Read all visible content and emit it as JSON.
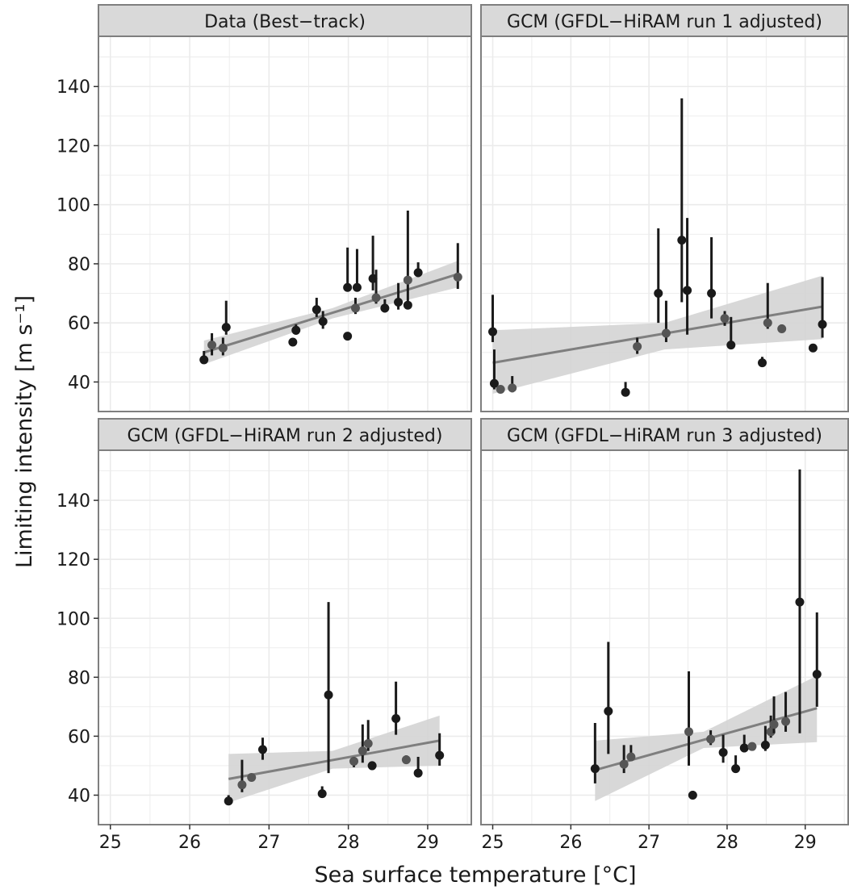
{
  "chart_data": {
    "type": "scatter",
    "xlabel": "Sea surface temperature [°C]",
    "ylabel": "Limiting intensity [m s⁻¹]",
    "x_ticks": [
      25,
      26,
      27,
      28,
      29
    ],
    "y_ticks": [
      40,
      60,
      80,
      100,
      120,
      140
    ],
    "xlim": [
      24.85,
      29.55
    ],
    "ylim": [
      30,
      157
    ],
    "colors": {
      "point_dark": "#1a1a1a",
      "point_gray": "#555555",
      "fit_line": "#7f7f7f",
      "ci_band": "#d4d4d4",
      "strip_fill": "#d9d9d9",
      "grid": "#ebebeb",
      "frame": "#7f7f7f"
    },
    "panels": [
      {
        "title": "Data (Best−track)",
        "points": [
          {
            "x": 26.18,
            "y": 47.5,
            "lo": 46.5,
            "hi": 50.5,
            "tone": "dark"
          },
          {
            "x": 26.28,
            "y": 52.5,
            "lo": 49.0,
            "hi": 56.5,
            "tone": "gray"
          },
          {
            "x": 26.42,
            "y": 51.5,
            "lo": 49.0,
            "hi": 55.0,
            "tone": "gray"
          },
          {
            "x": 26.46,
            "y": 58.5,
            "lo": 56.0,
            "hi": 67.5,
            "tone": "dark"
          },
          {
            "x": 27.3,
            "y": 53.5,
            "lo": 53.5,
            "hi": 53.5,
            "tone": "dark"
          },
          {
            "x": 27.34,
            "y": 57.5,
            "lo": 56.0,
            "hi": 59.5,
            "tone": "dark"
          },
          {
            "x": 27.6,
            "y": 64.5,
            "lo": 62.0,
            "hi": 68.5,
            "tone": "dark"
          },
          {
            "x": 27.68,
            "y": 60.5,
            "lo": 58.0,
            "hi": 64.0,
            "tone": "dark"
          },
          {
            "x": 27.99,
            "y": 72.0,
            "lo": 72.0,
            "hi": 85.5,
            "tone": "dark"
          },
          {
            "x": 27.99,
            "y": 55.5,
            "lo": 55.5,
            "hi": 55.5,
            "tone": "dark"
          },
          {
            "x": 28.09,
            "y": 65.0,
            "lo": 63.0,
            "hi": 68.5,
            "tone": "gray"
          },
          {
            "x": 28.11,
            "y": 72.0,
            "lo": 72.0,
            "hi": 85.0,
            "tone": "dark"
          },
          {
            "x": 28.31,
            "y": 75.0,
            "lo": 71.0,
            "hi": 89.5,
            "tone": "dark"
          },
          {
            "x": 28.35,
            "y": 68.5,
            "lo": 66.5,
            "hi": 78.0,
            "tone": "gray"
          },
          {
            "x": 28.46,
            "y": 65.0,
            "lo": 63.5,
            "hi": 68.0,
            "tone": "dark"
          },
          {
            "x": 28.63,
            "y": 67.0,
            "lo": 64.5,
            "hi": 73.5,
            "tone": "dark"
          },
          {
            "x": 28.75,
            "y": 74.5,
            "lo": 66.0,
            "hi": 98.0,
            "tone": "gray"
          },
          {
            "x": 28.75,
            "y": 66.0,
            "lo": 66.0,
            "hi": 66.0,
            "tone": "dark"
          },
          {
            "x": 28.88,
            "y": 77.0,
            "lo": 75.5,
            "hi": 80.5,
            "tone": "dark"
          },
          {
            "x": 29.38,
            "y": 75.5,
            "lo": 71.5,
            "hi": 87.0,
            "tone": "gray"
          }
        ],
        "fit": {
          "x0": 26.18,
          "x1": 29.38,
          "y0": 50.0,
          "y1": 76.5
        },
        "band": [
          {
            "x": 26.18,
            "lo": 46.0,
            "hi": 54.0
          },
          {
            "x": 27.8,
            "lo": 61.5,
            "hi": 65.0
          },
          {
            "x": 29.38,
            "lo": 72.0,
            "hi": 81.0
          }
        ]
      },
      {
        "title": "GCM (GFDL−HiRAM run 1 adjusted)",
        "points": [
          {
            "x": 25.0,
            "y": 57.0,
            "lo": 53.5,
            "hi": 69.5,
            "tone": "dark"
          },
          {
            "x": 25.02,
            "y": 39.5,
            "lo": 37.5,
            "hi": 51.0,
            "tone": "dark"
          },
          {
            "x": 25.1,
            "y": 37.5,
            "lo": 37.0,
            "hi": 38.5,
            "tone": "gray"
          },
          {
            "x": 25.25,
            "y": 38.0,
            "lo": 36.5,
            "hi": 42.0,
            "tone": "gray"
          },
          {
            "x": 26.7,
            "y": 36.5,
            "lo": 36.0,
            "hi": 40.0,
            "tone": "dark"
          },
          {
            "x": 26.85,
            "y": 52.0,
            "lo": 49.5,
            "hi": 55.0,
            "tone": "gray"
          },
          {
            "x": 27.12,
            "y": 70.0,
            "lo": 60.0,
            "hi": 92.0,
            "tone": "dark"
          },
          {
            "x": 27.22,
            "y": 56.5,
            "lo": 53.5,
            "hi": 67.5,
            "tone": "gray"
          },
          {
            "x": 27.42,
            "y": 88.0,
            "lo": 67.0,
            "hi": 136.0,
            "tone": "dark"
          },
          {
            "x": 27.49,
            "y": 71.0,
            "lo": 56.0,
            "hi": 95.5,
            "tone": "dark"
          },
          {
            "x": 27.8,
            "y": 70.0,
            "lo": 61.5,
            "hi": 89.0,
            "tone": "dark"
          },
          {
            "x": 27.97,
            "y": 61.5,
            "lo": 59.0,
            "hi": 64.0,
            "tone": "gray"
          },
          {
            "x": 28.05,
            "y": 52.5,
            "lo": 51.5,
            "hi": 62.0,
            "tone": "dark"
          },
          {
            "x": 28.45,
            "y": 46.5,
            "lo": 45.5,
            "hi": 48.5,
            "tone": "dark"
          },
          {
            "x": 28.52,
            "y": 60.0,
            "lo": 58.0,
            "hi": 73.5,
            "tone": "gray"
          },
          {
            "x": 28.7,
            "y": 58.0,
            "lo": 57.0,
            "hi": 59.5,
            "tone": "gray"
          },
          {
            "x": 29.1,
            "y": 51.5,
            "lo": 51.5,
            "hi": 51.5,
            "tone": "dark"
          },
          {
            "x": 29.22,
            "y": 59.5,
            "lo": 55.0,
            "hi": 75.5,
            "tone": "dark"
          }
        ],
        "fit": {
          "x0": 25.0,
          "x1": 29.22,
          "y0": 46.5,
          "y1": 65.5
        },
        "band": [
          {
            "x": 25.0,
            "lo": 36.0,
            "hi": 57.5
          },
          {
            "x": 27.2,
            "lo": 51.0,
            "hi": 60.0
          },
          {
            "x": 29.22,
            "lo": 54.5,
            "hi": 76.0
          }
        ]
      },
      {
        "title": "GCM (GFDL−HiRAM run 2 adjusted)",
        "points": [
          {
            "x": 26.49,
            "y": 38.0,
            "lo": 37.0,
            "hi": 40.0,
            "tone": "dark"
          },
          {
            "x": 26.66,
            "y": 43.5,
            "lo": 41.0,
            "hi": 52.0,
            "tone": "gray"
          },
          {
            "x": 26.78,
            "y": 46.0,
            "lo": 45.0,
            "hi": 47.0,
            "tone": "gray"
          },
          {
            "x": 26.92,
            "y": 55.5,
            "lo": 52.0,
            "hi": 59.5,
            "tone": "dark"
          },
          {
            "x": 27.67,
            "y": 40.5,
            "lo": 40.0,
            "hi": 43.0,
            "tone": "dark"
          },
          {
            "x": 27.75,
            "y": 74.0,
            "lo": 47.5,
            "hi": 105.5,
            "tone": "dark"
          },
          {
            "x": 28.07,
            "y": 51.5,
            "lo": 49.5,
            "hi": 53.0,
            "tone": "gray"
          },
          {
            "x": 28.18,
            "y": 55.0,
            "lo": 51.0,
            "hi": 64.0,
            "tone": "gray"
          },
          {
            "x": 28.25,
            "y": 57.5,
            "lo": 55.0,
            "hi": 65.5,
            "tone": "gray"
          },
          {
            "x": 28.3,
            "y": 50.0,
            "lo": 48.5,
            "hi": 51.5,
            "tone": "dark"
          },
          {
            "x": 28.6,
            "y": 66.0,
            "lo": 60.5,
            "hi": 78.5,
            "tone": "dark"
          },
          {
            "x": 28.73,
            "y": 52.0,
            "lo": 51.0,
            "hi": 53.5,
            "tone": "gray"
          },
          {
            "x": 28.88,
            "y": 47.5,
            "lo": 46.0,
            "hi": 53.0,
            "tone": "dark"
          },
          {
            "x": 29.15,
            "y": 53.5,
            "lo": 50.0,
            "hi": 61.0,
            "tone": "dark"
          }
        ],
        "fit": {
          "x0": 26.49,
          "x1": 29.15,
          "y0": 45.5,
          "y1": 58.5
        },
        "band": [
          {
            "x": 26.49,
            "lo": 37.5,
            "hi": 54.0
          },
          {
            "x": 27.8,
            "lo": 49.0,
            "hi": 55.0
          },
          {
            "x": 29.15,
            "lo": 50.0,
            "hi": 67.0
          }
        ]
      },
      {
        "title": "GCM (GFDL−HiRAM run 3 adjusted)",
        "points": [
          {
            "x": 26.31,
            "y": 49.0,
            "lo": 44.0,
            "hi": 64.5,
            "tone": "dark"
          },
          {
            "x": 26.48,
            "y": 68.5,
            "lo": 54.0,
            "hi": 92.0,
            "tone": "dark"
          },
          {
            "x": 26.68,
            "y": 50.5,
            "lo": 47.5,
            "hi": 57.0,
            "tone": "gray"
          },
          {
            "x": 26.77,
            "y": 53.0,
            "lo": 51.5,
            "hi": 57.0,
            "tone": "gray"
          },
          {
            "x": 27.51,
            "y": 61.5,
            "lo": 50.0,
            "hi": 82.0,
            "tone": "gray"
          },
          {
            "x": 27.56,
            "y": 40.0,
            "lo": 39.0,
            "hi": 41.5,
            "tone": "dark"
          },
          {
            "x": 27.79,
            "y": 59.0,
            "lo": 57.0,
            "hi": 62.0,
            "tone": "gray"
          },
          {
            "x": 27.95,
            "y": 54.5,
            "lo": 51.0,
            "hi": 60.5,
            "tone": "dark"
          },
          {
            "x": 28.11,
            "y": 49.0,
            "lo": 48.0,
            "hi": 53.5,
            "tone": "dark"
          },
          {
            "x": 28.22,
            "y": 56.0,
            "lo": 54.5,
            "hi": 60.5,
            "tone": "dark"
          },
          {
            "x": 28.32,
            "y": 56.5,
            "lo": 55.5,
            "hi": 57.5,
            "tone": "gray"
          },
          {
            "x": 28.49,
            "y": 57.0,
            "lo": 55.0,
            "hi": 63.5,
            "tone": "dark"
          },
          {
            "x": 28.56,
            "y": 61.5,
            "lo": 59.5,
            "hi": 67.0,
            "tone": "gray"
          },
          {
            "x": 28.6,
            "y": 64.0,
            "lo": 61.0,
            "hi": 73.5,
            "tone": "gray"
          },
          {
            "x": 28.75,
            "y": 65.0,
            "lo": 61.5,
            "hi": 75.0,
            "tone": "gray"
          },
          {
            "x": 28.93,
            "y": 105.5,
            "lo": 61.0,
            "hi": 150.5,
            "tone": "dark"
          },
          {
            "x": 29.15,
            "y": 81.0,
            "lo": 70.0,
            "hi": 102.0,
            "tone": "dark"
          }
        ],
        "fit": {
          "x0": 26.31,
          "x1": 29.15,
          "y0": 48.5,
          "y1": 69.5
        },
        "band": [
          {
            "x": 26.31,
            "lo": 38.0,
            "hi": 58.5
          },
          {
            "x": 27.7,
            "lo": 56.0,
            "hi": 61.5
          },
          {
            "x": 29.15,
            "lo": 58.0,
            "hi": 80.5
          }
        ]
      }
    ]
  }
}
